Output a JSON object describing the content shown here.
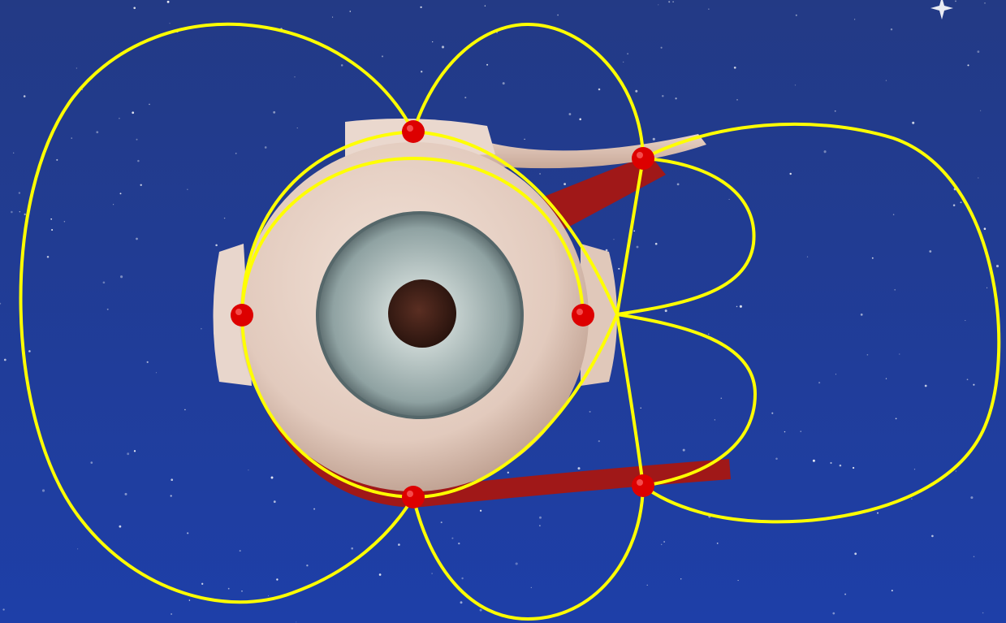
{
  "colors": {
    "sky_top": "#233a85",
    "sky_bottom": "#1e3fa8",
    "curve": "#ffff00",
    "marker": "#dd0000",
    "muscle": "#a01818",
    "sclera": "#e6d2c6",
    "iris": "#9fb0b0",
    "pupil": "#3a1c14"
  },
  "markers": [
    {
      "name": "marker-top"
    },
    {
      "name": "marker-left"
    },
    {
      "name": "marker-right"
    },
    {
      "name": "marker-bottom"
    },
    {
      "name": "marker-upper-right"
    },
    {
      "name": "marker-lower-right"
    }
  ]
}
